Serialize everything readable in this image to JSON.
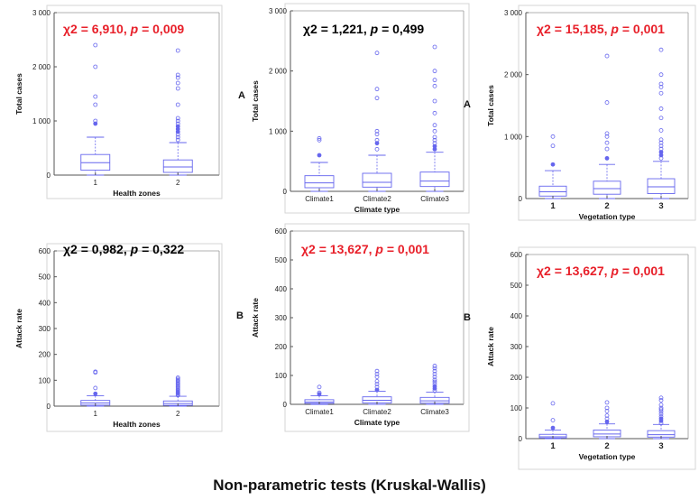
{
  "caption": "Non-parametric tests (Kruskal-Wallis)",
  "colors": {
    "box": "#6666ee",
    "stat_red": "#e8202a",
    "stat_black": "#000000"
  },
  "panel_letters": {
    "row_a": "A",
    "row_b": "B"
  },
  "chart_data": [
    {
      "type": "box",
      "stat": {
        "label": "χ2 = 6,910, ",
        "p_label": "p",
        "p_value": " = 0,009",
        "color": "red"
      },
      "ylabel": "Total cases",
      "xlabel": "Health zones",
      "ylim": [
        0,
        3000
      ],
      "yticks": [
        0,
        1000,
        2000,
        3000
      ],
      "ytick_labels": [
        "0",
        "1 000",
        "2 000",
        "3 000"
      ],
      "categories": [
        "1",
        "2"
      ],
      "category_style": "plain",
      "boxes": [
        {
          "whisker_low": 0,
          "q1": 90,
          "median": 230,
          "q3": 380,
          "whisker_high": 700,
          "outliers": [
            950,
            1000,
            1300,
            1450,
            2000,
            2400
          ],
          "filled_outliers": [
            950
          ]
        },
        {
          "whisker_low": 0,
          "q1": 50,
          "median": 150,
          "q3": 280,
          "whisker_high": 600,
          "outliers": [
            650,
            700,
            750,
            800,
            850,
            900,
            950,
            1000,
            1050,
            1300,
            1600,
            1700,
            1800,
            1850,
            2300
          ],
          "filled_outliers": [
            800,
            850,
            900
          ]
        }
      ]
    },
    {
      "type": "box",
      "stat": {
        "label": "χ2 = 1,221, ",
        "p_label": "p",
        "p_value": " = 0,499",
        "color": "black"
      },
      "ylabel": "Total cases",
      "xlabel": "Climate type",
      "ylim": [
        0,
        3000
      ],
      "yticks": [
        0,
        1000,
        2000,
        3000
      ],
      "ytick_labels": [
        "0",
        "1 000",
        "2 000",
        "3 000"
      ],
      "categories": [
        "Climate1",
        "Climate2",
        "Climate3"
      ],
      "category_style": "plain",
      "boxes": [
        {
          "whisker_low": 0,
          "q1": 60,
          "median": 140,
          "q3": 260,
          "whisker_high": 480,
          "outliers": [
            600,
            850,
            880
          ],
          "filled_outliers": [
            600
          ]
        },
        {
          "whisker_low": 0,
          "q1": 70,
          "median": 150,
          "q3": 300,
          "whisker_high": 600,
          "outliers": [
            700,
            800,
            850,
            950,
            1000,
            1550,
            1700,
            2300
          ],
          "filled_outliers": [
            800
          ]
        },
        {
          "whisker_low": 0,
          "q1": 80,
          "median": 170,
          "q3": 320,
          "whisker_high": 650,
          "outliers": [
            700,
            750,
            800,
            850,
            900,
            1000,
            1100,
            1300,
            1500,
            1750,
            1850,
            2000,
            2400
          ],
          "filled_outliers": [
            700,
            750
          ]
        }
      ]
    },
    {
      "type": "box",
      "stat": {
        "label": "χ2 = 15,185, ",
        "p_label": "p",
        "p_value": " = 0,001",
        "color": "red"
      },
      "ylabel": "Total cases",
      "xlabel": "Vegetation type",
      "ylim": [
        0,
        3000
      ],
      "yticks": [
        0,
        1000,
        2000,
        3000
      ],
      "ytick_labels": [
        "0",
        "1 000",
        "2 000",
        "3 000"
      ],
      "categories": [
        "1",
        "2",
        "3"
      ],
      "category_style": "bold",
      "boxes": [
        {
          "whisker_low": 0,
          "q1": 40,
          "median": 110,
          "q3": 200,
          "whisker_high": 450,
          "outliers": [
            550,
            850,
            1000
          ],
          "filled_outliers": [
            550
          ]
        },
        {
          "whisker_low": 0,
          "q1": 70,
          "median": 160,
          "q3": 280,
          "whisker_high": 550,
          "outliers": [
            650,
            800,
            900,
            1000,
            1050,
            1550,
            2300
          ],
          "filled_outliers": [
            650
          ]
        },
        {
          "whisker_low": 0,
          "q1": 80,
          "median": 190,
          "q3": 320,
          "whisker_high": 600,
          "outliers": [
            650,
            700,
            750,
            800,
            850,
            900,
            950,
            1100,
            1300,
            1450,
            1700,
            1800,
            1850,
            2000,
            2400
          ],
          "filled_outliers": [
            700,
            750
          ]
        }
      ]
    },
    {
      "type": "box",
      "stat": {
        "label": "χ2 = 0,982, ",
        "p_label": "p",
        "p_value": " = 0,322",
        "color": "black"
      },
      "ylabel": "Attack rate",
      "xlabel": "Health zones",
      "ylim": [
        0,
        600
      ],
      "yticks": [
        0,
        100,
        200,
        300,
        400,
        500,
        600
      ],
      "ytick_labels": [
        "0",
        "100",
        "200",
        "300",
        "400",
        "500",
        "600"
      ],
      "categories": [
        "1",
        "2"
      ],
      "category_style": "plain",
      "boxes": [
        {
          "whisker_low": 0,
          "q1": 4,
          "median": 12,
          "q3": 22,
          "whisker_high": 40,
          "outliers": [
            48,
            70,
            130,
            133
          ],
          "filled_outliers": [
            48
          ]
        },
        {
          "whisker_low": 0,
          "q1": 3,
          "median": 10,
          "q3": 20,
          "whisker_high": 38,
          "outliers": [
            42,
            46,
            50,
            55,
            60,
            65,
            70,
            75,
            80,
            85,
            90,
            95,
            100,
            105,
            110
          ],
          "filled_outliers": [
            50,
            55
          ]
        }
      ]
    },
    {
      "type": "box",
      "stat": {
        "label": "χ2 = 13,627, ",
        "p_label": "p",
        "p_value": " = 0,001",
        "color": "red"
      },
      "ylabel": "Attack rate",
      "xlabel": "Climate type",
      "ylim": [
        0,
        600
      ],
      "yticks": [
        0,
        100,
        200,
        300,
        400,
        500,
        600
      ],
      "ytick_labels": [
        "0",
        "100",
        "200",
        "300",
        "400",
        "500",
        "600"
      ],
      "categories": [
        "Climate1",
        "Climate2",
        "Climate3"
      ],
      "category_style": "plain",
      "boxes": [
        {
          "whisker_low": 0,
          "q1": 3,
          "median": 8,
          "q3": 16,
          "whisker_high": 30,
          "outliers": [
            35,
            40,
            60
          ],
          "filled_outliers": [
            35
          ]
        },
        {
          "whisker_low": 0,
          "q1": 5,
          "median": 14,
          "q3": 26,
          "whisker_high": 45,
          "outliers": [
            50,
            60,
            70,
            80,
            95,
            105,
            115
          ],
          "filled_outliers": [
            50
          ]
        },
        {
          "whisker_low": 0,
          "q1": 4,
          "median": 12,
          "q3": 24,
          "whisker_high": 42,
          "outliers": [
            48,
            55,
            62,
            70,
            78,
            85,
            95,
            105,
            115,
            125,
            133
          ],
          "filled_outliers": [
            55,
            62
          ]
        }
      ]
    },
    {
      "type": "box",
      "stat": {
        "label": "χ2 = 13,627, ",
        "p_label": "p",
        "p_value": " = 0,001",
        "color": "red"
      },
      "ylabel": "Attack rate",
      "xlabel": "Vegetation type",
      "ylim": [
        0,
        600
      ],
      "yticks": [
        0,
        100,
        200,
        300,
        400,
        500,
        600
      ],
      "ytick_labels": [
        "0",
        "100",
        "200",
        "300",
        "400",
        "500",
        "600"
      ],
      "categories": [
        "1",
        "2",
        "3"
      ],
      "category_style": "bold",
      "boxes": [
        {
          "whisker_low": 0,
          "q1": 2,
          "median": 6,
          "q3": 14,
          "whisker_high": 28,
          "outliers": [
            35,
            60,
            115
          ],
          "filled_outliers": [
            35
          ]
        },
        {
          "whisker_low": 0,
          "q1": 6,
          "median": 15,
          "q3": 28,
          "whisker_high": 48,
          "outliers": [
            55,
            65,
            75,
            90,
            100,
            118
          ],
          "filled_outliers": [
            55
          ]
        },
        {
          "whisker_low": 0,
          "q1": 5,
          "median": 13,
          "q3": 26,
          "whisker_high": 46,
          "outliers": [
            50,
            58,
            65,
            72,
            80,
            88,
            95,
            100,
            110,
            125,
            133
          ],
          "filled_outliers": [
            58,
            65
          ]
        }
      ]
    }
  ]
}
